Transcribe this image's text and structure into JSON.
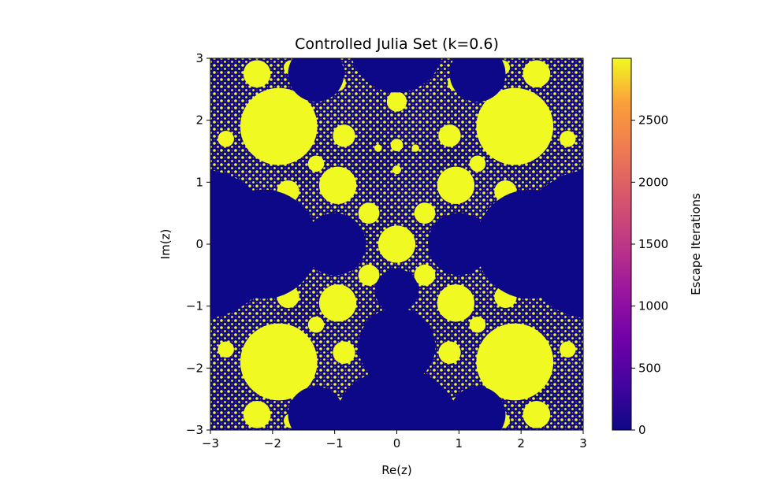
{
  "chart_data": {
    "type": "heatmap",
    "title": "Controlled Julia Set (k=0.6)",
    "xlabel": "Re(z)",
    "ylabel": "Im(z)",
    "xlim": [
      -3,
      3
    ],
    "ylim": [
      -3,
      3
    ],
    "x_ticks": [
      -3,
      -2,
      -1,
      0,
      1,
      2,
      3
    ],
    "y_ticks": [
      -3,
      -2,
      -1,
      0,
      1,
      2,
      3
    ],
    "x_tick_labels": [
      "−3",
      "−2",
      "−1",
      "0",
      "1",
      "2",
      "3"
    ],
    "y_tick_labels": [
      "−3",
      "−2",
      "−1",
      "0",
      "1",
      "2",
      "3"
    ],
    "colormap": "plasma",
    "colors": {
      "low": "#0d0887",
      "mid": "#cc4778",
      "high": "#f0f921"
    },
    "colorbar": {
      "label": "Escape Iterations",
      "range": [
        0,
        3000
      ],
      "ticks": [
        0,
        500,
        1000,
        1500,
        2000,
        2500
      ],
      "tick_labels": [
        "0",
        "500",
        "1000",
        "1500",
        "2000",
        "2500"
      ]
    },
    "grid": false,
    "disks": [
      {
        "cx": 0,
        "cy": 0,
        "r": 0.3,
        "value": 3000
      },
      {
        "cx": -0.95,
        "cy": 0.95,
        "r": 0.3,
        "value": 3000
      },
      {
        "cx": 0.95,
        "cy": 0.95,
        "r": 0.3,
        "value": 3000
      },
      {
        "cx": -0.95,
        "cy": -0.95,
        "r": 0.3,
        "value": 3000
      },
      {
        "cx": 0.95,
        "cy": -0.95,
        "r": 0.3,
        "value": 3000
      },
      {
        "cx": -1.9,
        "cy": 1.9,
        "r": 0.62,
        "value": 3000
      },
      {
        "cx": 1.9,
        "cy": 1.9,
        "r": 0.62,
        "value": 3000
      },
      {
        "cx": -1.9,
        "cy": -1.9,
        "r": 0.62,
        "value": 3000
      },
      {
        "cx": 1.9,
        "cy": -1.9,
        "r": 0.62,
        "value": 3000
      },
      {
        "cx": 0,
        "cy": 2.3,
        "r": 0.16,
        "value": 3000
      },
      {
        "cx": -0.45,
        "cy": 0.5,
        "r": 0.17,
        "value": 3000
      },
      {
        "cx": 0.45,
        "cy": 0.5,
        "r": 0.17,
        "value": 3000
      },
      {
        "cx": -0.45,
        "cy": -0.5,
        "r": 0.17,
        "value": 3000
      },
      {
        "cx": 0.45,
        "cy": -0.5,
        "r": 0.17,
        "value": 3000
      },
      {
        "cx": 0,
        "cy": 1.6,
        "r": 0.1,
        "value": 3000
      },
      {
        "cx": 0,
        "cy": 1.2,
        "r": 0.07,
        "value": 3000
      },
      {
        "cx": -1.75,
        "cy": 0.85,
        "r": 0.18,
        "value": 3000
      },
      {
        "cx": 1.75,
        "cy": 0.85,
        "r": 0.18,
        "value": 3000
      },
      {
        "cx": -1.75,
        "cy": -0.85,
        "r": 0.18,
        "value": 3000
      },
      {
        "cx": 1.75,
        "cy": -0.85,
        "r": 0.18,
        "value": 3000
      },
      {
        "cx": -0.85,
        "cy": 1.75,
        "r": 0.18,
        "value": 3000
      },
      {
        "cx": 0.85,
        "cy": 1.75,
        "r": 0.18,
        "value": 3000
      },
      {
        "cx": -0.85,
        "cy": -1.75,
        "r": 0.18,
        "value": 3000
      },
      {
        "cx": 0.85,
        "cy": -1.75,
        "r": 0.18,
        "value": 3000
      },
      {
        "cx": -2.25,
        "cy": 2.75,
        "r": 0.22,
        "value": 3000
      },
      {
        "cx": 2.25,
        "cy": 2.75,
        "r": 0.22,
        "value": 3000
      },
      {
        "cx": -2.25,
        "cy": -2.75,
        "r": 0.22,
        "value": 3000
      },
      {
        "cx": 2.25,
        "cy": -2.75,
        "r": 0.22,
        "value": 3000
      },
      {
        "cx": -2.75,
        "cy": 1.7,
        "r": 0.13,
        "value": 3000
      },
      {
        "cx": 2.75,
        "cy": 1.7,
        "r": 0.13,
        "value": 3000
      },
      {
        "cx": -2.75,
        "cy": -1.7,
        "r": 0.13,
        "value": 3000
      },
      {
        "cx": 2.75,
        "cy": -1.7,
        "r": 0.13,
        "value": 3000
      },
      {
        "cx": -1.3,
        "cy": 1.3,
        "r": 0.13,
        "value": 3000
      },
      {
        "cx": 1.3,
        "cy": 1.3,
        "r": 0.13,
        "value": 3000
      },
      {
        "cx": -1.3,
        "cy": -1.3,
        "r": 0.13,
        "value": 3000
      },
      {
        "cx": 1.3,
        "cy": -1.3,
        "r": 0.13,
        "value": 3000
      },
      {
        "cx": -1.7,
        "cy": 2.85,
        "r": 0.12,
        "value": 3000
      },
      {
        "cx": 1.7,
        "cy": 2.85,
        "r": 0.12,
        "value": 3000
      },
      {
        "cx": -1.7,
        "cy": -2.85,
        "r": 0.12,
        "value": 3000
      },
      {
        "cx": 1.7,
        "cy": -2.85,
        "r": 0.12,
        "value": 3000
      },
      {
        "cx": -0.95,
        "cy": 2.6,
        "r": 0.13,
        "value": 3000
      },
      {
        "cx": 0.95,
        "cy": 2.6,
        "r": 0.13,
        "value": 3000
      },
      {
        "cx": -0.95,
        "cy": -2.6,
        "r": 0.13,
        "value": 3000
      },
      {
        "cx": 0.95,
        "cy": -2.6,
        "r": 0.13,
        "value": 3000
      },
      {
        "cx": -2.55,
        "cy": 0.3,
        "r": 0.08,
        "value": 3000
      },
      {
        "cx": 2.55,
        "cy": 0.3,
        "r": 0.08,
        "value": 3000
      },
      {
        "cx": -2.55,
        "cy": -0.3,
        "r": 0.08,
        "value": 3000
      },
      {
        "cx": 2.55,
        "cy": -0.3,
        "r": 0.08,
        "value": 3000
      },
      {
        "cx": -0.3,
        "cy": 1.55,
        "r": 0.06,
        "value": 3000
      },
      {
        "cx": 0.3,
        "cy": 1.55,
        "r": 0.06,
        "value": 3000
      },
      {
        "cx": -0.3,
        "cy": -1.55,
        "r": 0.06,
        "value": 3000
      },
      {
        "cx": 0.3,
        "cy": -1.55,
        "r": 0.06,
        "value": 3000
      },
      {
        "cx": 0,
        "cy": -0.75,
        "r": 0.35,
        "value": 0
      },
      {
        "cx": 0,
        "cy": -1.65,
        "r": 0.62,
        "value": 0
      },
      {
        "cx": 0,
        "cy": -3.05,
        "r": 1.05,
        "value": 0
      },
      {
        "cx": 0,
        "cy": 3.2,
        "r": 0.75,
        "value": 0
      },
      {
        "cx": -1.0,
        "cy": 0,
        "r": 0.5,
        "value": 0
      },
      {
        "cx": 1.0,
        "cy": 0,
        "r": 0.5,
        "value": 0
      },
      {
        "cx": -2.15,
        "cy": 0,
        "r": 0.88,
        "value": 0
      },
      {
        "cx": 2.15,
        "cy": 0,
        "r": 0.88,
        "value": 0
      },
      {
        "cx": -3.15,
        "cy": 0,
        "r": 1.2,
        "value": 0
      },
      {
        "cx": 3.15,
        "cy": 0,
        "r": 1.2,
        "value": 0
      },
      {
        "cx": -1.3,
        "cy": 2.75,
        "r": 0.45,
        "value": 0
      },
      {
        "cx": 1.3,
        "cy": 2.75,
        "r": 0.45,
        "value": 0
      },
      {
        "cx": -1.3,
        "cy": -2.75,
        "r": 0.45,
        "value": 0
      },
      {
        "cx": 1.3,
        "cy": -2.75,
        "r": 0.45,
        "value": 0
      }
    ]
  }
}
